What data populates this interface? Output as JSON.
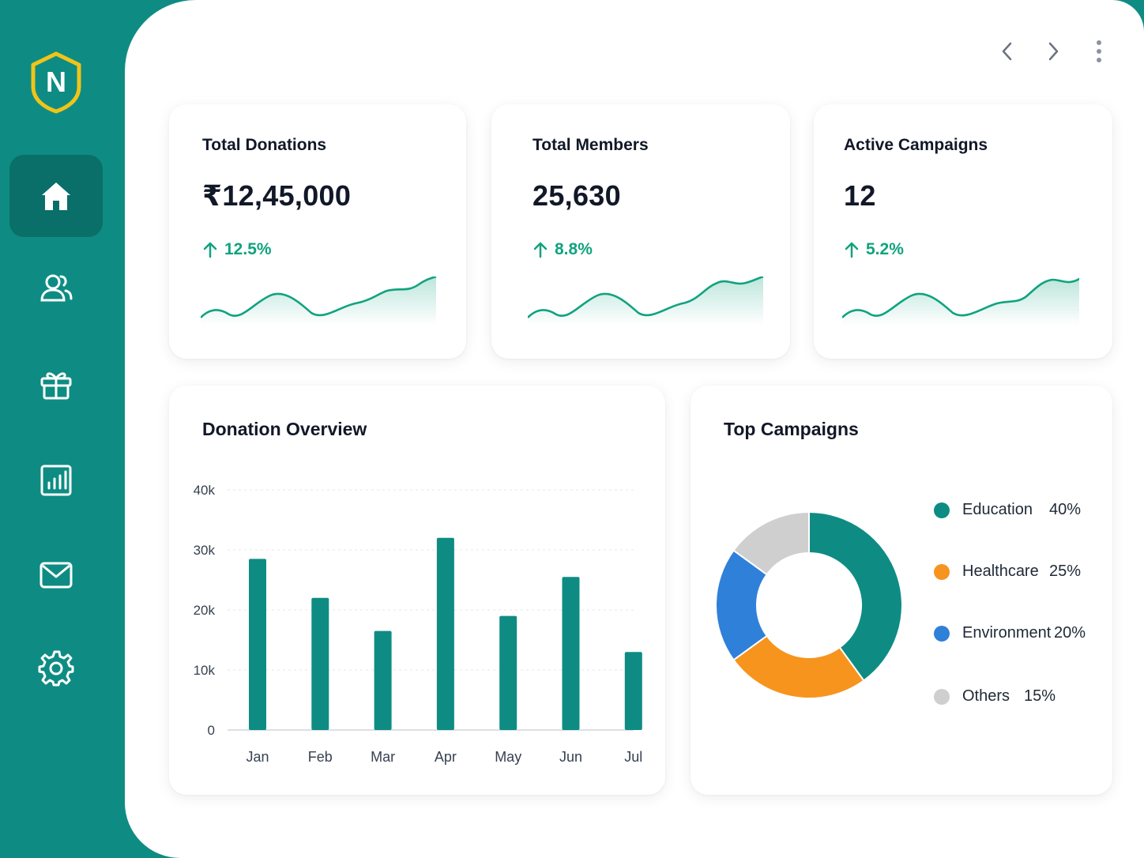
{
  "colors": {
    "brand": "#0e8c83",
    "accent_green": "#10a37f",
    "logo_yellow": "#f0c419",
    "bar": "#0e8c83"
  },
  "sidebar": {
    "logo_letter": "N",
    "items": [
      {
        "name": "home",
        "icon": "home-icon",
        "active": true
      },
      {
        "name": "members",
        "icon": "users-icon",
        "active": false
      },
      {
        "name": "donations",
        "icon": "gift-icon",
        "active": false
      },
      {
        "name": "reports",
        "icon": "bar-chart-icon",
        "active": false
      },
      {
        "name": "messages",
        "icon": "mail-icon",
        "active": false
      },
      {
        "name": "settings",
        "icon": "gear-icon",
        "active": false
      }
    ]
  },
  "topnav": {
    "icons": [
      "chevron-left-icon",
      "chevron-right-icon",
      "more-vertical-icon"
    ]
  },
  "stats": [
    {
      "title": "Total Donations",
      "value": "₹12,45,000",
      "change": "12.5%"
    },
    {
      "title": "Total Members",
      "value": "25,630",
      "change": "8.8%"
    },
    {
      "title": "Active Campaigns",
      "value": "12",
      "change": "5.2%"
    }
  ],
  "donation_overview": {
    "title": "Donation Overview"
  },
  "top_campaigns": {
    "title": "Top Campaigns",
    "items": [
      {
        "label": "Education",
        "pct": "40%",
        "color": "#0e8c83"
      },
      {
        "label": "Healthcare",
        "pct": "25%",
        "color": "#f7941d"
      },
      {
        "label": "Environment",
        "pct": "20%",
        "color": "#2f80d9"
      },
      {
        "label": "Others",
        "pct": "15%",
        "color": "#cfcfcf"
      }
    ]
  },
  "chart_data": [
    {
      "type": "bar",
      "title": "Donation Overview",
      "categories": [
        "Jan",
        "Feb",
        "Mar",
        "Apr",
        "May",
        "Jun",
        "Jul"
      ],
      "values": [
        28500,
        22000,
        16500,
        32000,
        19000,
        25500,
        13000
      ],
      "ylim": [
        0,
        40000
      ],
      "yticks": [
        0,
        10000,
        20000,
        30000,
        40000
      ],
      "ytick_labels": [
        "0",
        "10k",
        "20k",
        "30k",
        "40k"
      ],
      "grid": true
    },
    {
      "type": "pie",
      "title": "Top Campaigns",
      "labels": [
        "Education",
        "Healthcare",
        "Environment",
        "Others"
      ],
      "values": [
        40,
        25,
        20,
        15
      ]
    }
  ]
}
